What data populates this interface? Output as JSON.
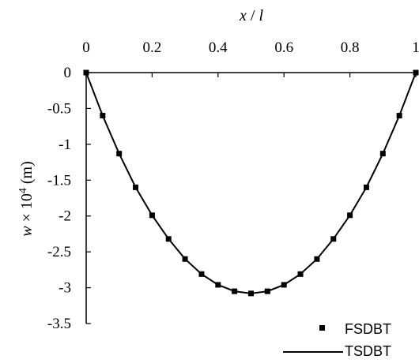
{
  "chart_data": {
    "type": "line",
    "title": "",
    "xlabel": {
      "var": "x",
      "sep": " / ",
      "den": "l"
    },
    "ylabel": {
      "var": "w",
      "mid": " × 10",
      "exp": "4",
      "unit": " (m)"
    },
    "xlim": [
      0,
      1
    ],
    "ylim": [
      -3.5,
      0
    ],
    "x_axis_position": "top",
    "grid": false,
    "legend_position": "bottom-right",
    "x_ticks": [
      {
        "value": 0,
        "label": "0"
      },
      {
        "value": 0.2,
        "label": "0.2"
      },
      {
        "value": 0.4,
        "label": "0.4"
      },
      {
        "value": 0.6,
        "label": "0.6"
      },
      {
        "value": 0.8,
        "label": "0.8"
      },
      {
        "value": 1,
        "label": "1"
      }
    ],
    "y_ticks": [
      {
        "value": 0,
        "label": "0"
      },
      {
        "value": -0.5,
        "label": "-0.5"
      },
      {
        "value": -1,
        "label": "-1"
      },
      {
        "value": -1.5,
        "label": "-1.5"
      },
      {
        "value": -2,
        "label": "-2"
      },
      {
        "value": -2.5,
        "label": "-2.5"
      },
      {
        "value": -3,
        "label": "-3"
      },
      {
        "value": -3.5,
        "label": "-3.5"
      }
    ],
    "series": [
      {
        "name": "FSDBT",
        "style": "markers",
        "marker": "square",
        "color": "#000000",
        "x": [
          0,
          0.05,
          0.1,
          0.15,
          0.2,
          0.25,
          0.3,
          0.35,
          0.4,
          0.45,
          0.5,
          0.55,
          0.6,
          0.65,
          0.7,
          0.75,
          0.8,
          0.85,
          0.9,
          0.95,
          1
        ],
        "y": [
          0,
          -0.6,
          -1.13,
          -1.6,
          -1.99,
          -2.32,
          -2.6,
          -2.81,
          -2.96,
          -3.05,
          -3.08,
          -3.05,
          -2.96,
          -2.81,
          -2.6,
          -2.32,
          -1.99,
          -1.6,
          -1.13,
          -0.6,
          0
        ]
      },
      {
        "name": "TSDBT",
        "style": "line",
        "color": "#000000",
        "x": [
          0,
          0.05,
          0.1,
          0.15,
          0.2,
          0.25,
          0.3,
          0.35,
          0.4,
          0.45,
          0.5,
          0.55,
          0.6,
          0.65,
          0.7,
          0.75,
          0.8,
          0.85,
          0.9,
          0.95,
          1
        ],
        "y": [
          0,
          -0.6,
          -1.13,
          -1.6,
          -1.99,
          -2.32,
          -2.6,
          -2.81,
          -2.96,
          -3.05,
          -3.08,
          -3.05,
          -2.96,
          -2.81,
          -2.6,
          -2.32,
          -1.99,
          -1.6,
          -1.13,
          -0.6,
          0
        ]
      }
    ]
  }
}
